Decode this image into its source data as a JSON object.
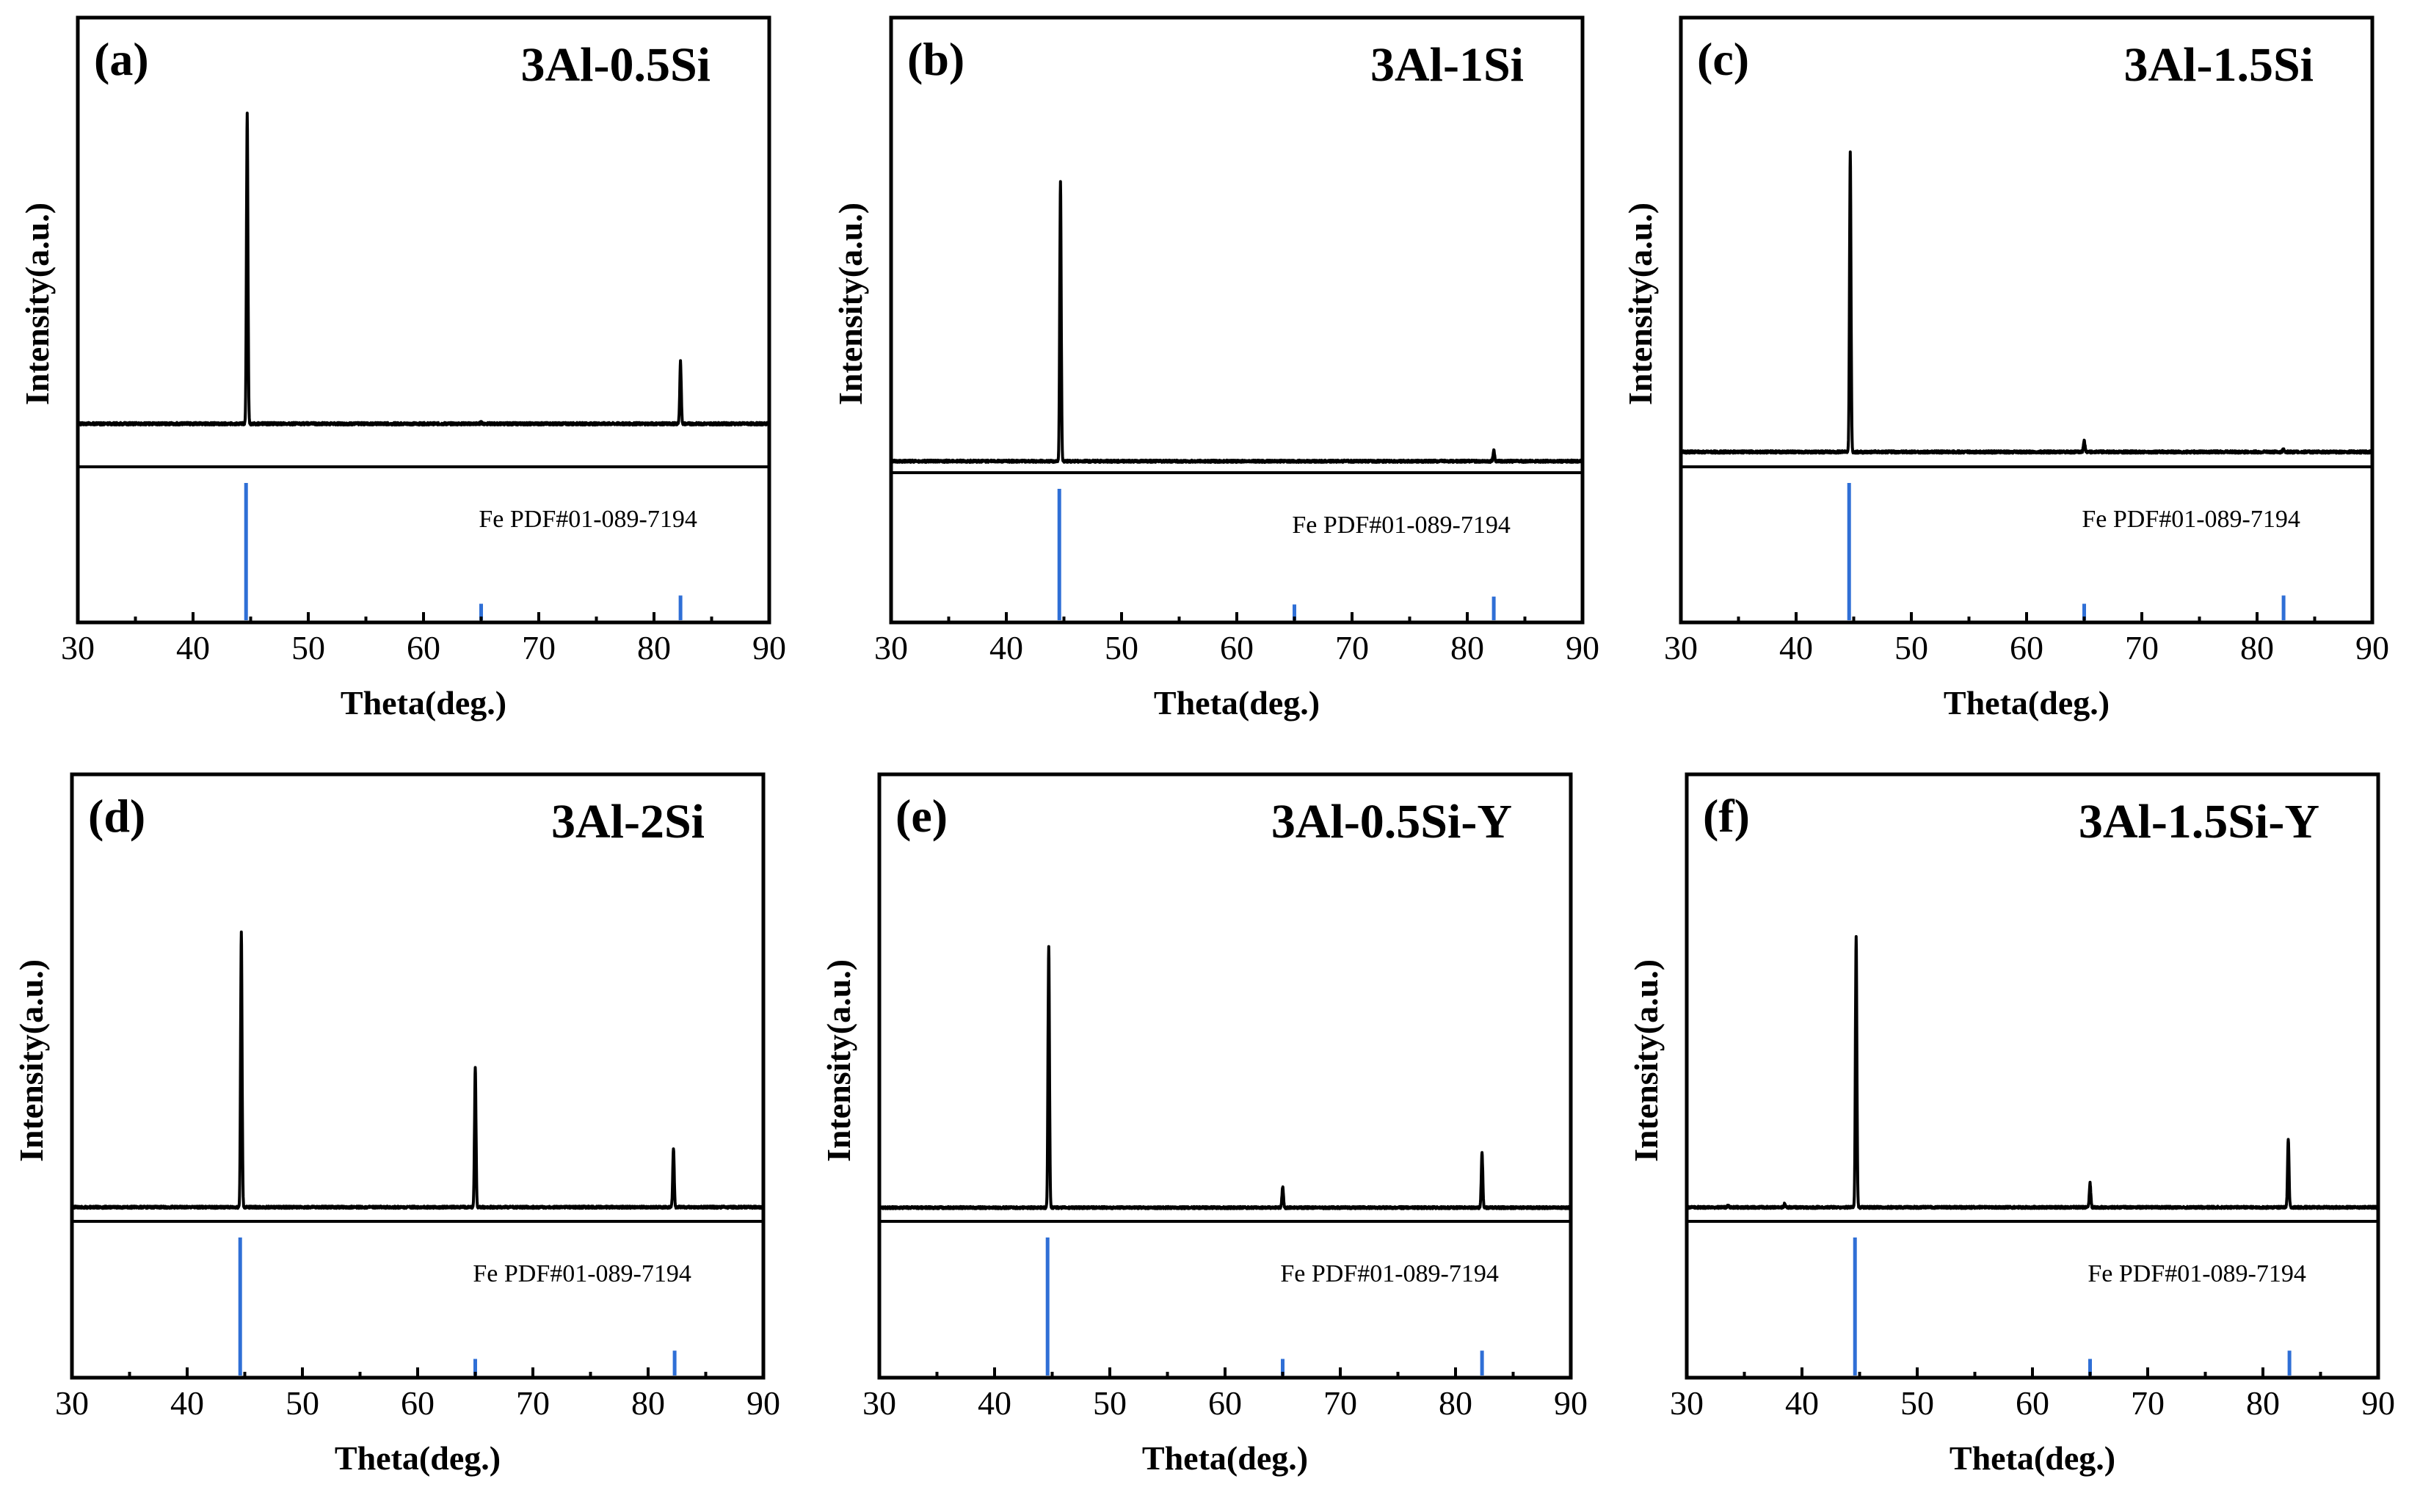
{
  "figure": {
    "accent_color": "#2f6fd6",
    "line_color": "#000000"
  },
  "chart_data": [
    {
      "type": "line",
      "panel": "(a)",
      "title": "3Al-0.5Si",
      "xlabel": "Theta(deg.)",
      "ylabel": "Intensity(a.u.)",
      "xlim": [
        30,
        90
      ],
      "xticks": [
        "30",
        "40",
        "50",
        "60",
        "70",
        "80",
        "90"
      ],
      "pattern": {
        "baseline": 0.0,
        "peaks": [
          {
            "x": 44.7,
            "y": 1.0
          },
          {
            "x": 82.3,
            "y": 0.2
          },
          {
            "x": 65.0,
            "y": 0.005
          }
        ],
        "ylim": [
          -0.12,
          1.05
        ]
      },
      "reference": {
        "label": "Fe PDF#01-089-7194",
        "lines": [
          {
            "x": 44.6,
            "y": 100
          },
          {
            "x": 65.0,
            "y": 12
          },
          {
            "x": 82.3,
            "y": 18
          }
        ]
      }
    },
    {
      "type": "line",
      "panel": "(b)",
      "title": "3Al-1Si",
      "xlabel": "Theta(deg.)",
      "ylabel": "Intensity(a.u.)",
      "xlim": [
        30,
        90
      ],
      "xticks": [
        "30",
        "40",
        "50",
        "60",
        "70",
        "80",
        "90"
      ],
      "pattern": {
        "baseline": 0.0,
        "peaks": [
          {
            "x": 44.7,
            "y": 1.0
          },
          {
            "x": 82.3,
            "y": 0.04
          }
        ],
        "ylim": [
          -0.02,
          1.3
        ]
      },
      "reference": {
        "label": "Fe PDF#01-089-7194",
        "lines": [
          {
            "x": 44.6,
            "y": 100
          },
          {
            "x": 65.0,
            "y": 12
          },
          {
            "x": 82.3,
            "y": 18
          }
        ]
      }
    },
    {
      "type": "line",
      "panel": "(c)",
      "title": "3Al-1.5Si",
      "xlabel": "Theta(deg.)",
      "ylabel": "Intensity(a.u.)",
      "xlim": [
        30,
        90
      ],
      "xticks": [
        "30",
        "40",
        "50",
        "60",
        "70",
        "80",
        "90"
      ],
      "pattern": {
        "baseline": 0.0,
        "peaks": [
          {
            "x": 44.7,
            "y": 1.0
          },
          {
            "x": 65.0,
            "y": 0.04
          },
          {
            "x": 82.3,
            "y": 0.012
          }
        ],
        "ylim": [
          -0.03,
          1.18
        ]
      },
      "reference": {
        "label": "Fe PDF#01-089-7194",
        "lines": [
          {
            "x": 44.6,
            "y": 100
          },
          {
            "x": 65.0,
            "y": 12
          },
          {
            "x": 82.3,
            "y": 18
          }
        ]
      }
    },
    {
      "type": "line",
      "panel": "(d)",
      "title": "3Al-2Si",
      "xlabel": "Theta(deg.)",
      "ylabel": "Intensity(a.u.)",
      "xlim": [
        30,
        90
      ],
      "xticks": [
        "30",
        "40",
        "50",
        "60",
        "70",
        "80",
        "90"
      ],
      "pattern": {
        "baseline": 0.0,
        "peaks": [
          {
            "x": 44.7,
            "y": 1.0
          },
          {
            "x": 65.0,
            "y": 0.51
          },
          {
            "x": 82.2,
            "y": 0.21
          }
        ],
        "ylim": [
          -0.03,
          1.28
        ]
      },
      "reference": {
        "label": "Fe PDF#01-089-7194",
        "lines": [
          {
            "x": 44.6,
            "y": 100
          },
          {
            "x": 65.0,
            "y": 12
          },
          {
            "x": 82.3,
            "y": 18
          }
        ]
      }
    },
    {
      "type": "line",
      "panel": "(e)",
      "title": "3Al-0.5Si-Y",
      "xlabel": "Theta(deg.)",
      "ylabel": "Intensity(a.u.)",
      "xlim": [
        30,
        90
      ],
      "xticks": [
        "30",
        "40",
        "50",
        "60",
        "70",
        "80",
        "90"
      ],
      "pattern": {
        "baseline": 0.0,
        "peaks": [
          {
            "x": 44.7,
            "y": 1.0
          },
          {
            "x": 65.0,
            "y": 0.08
          },
          {
            "x": 82.3,
            "y": 0.21
          }
        ],
        "ylim": [
          -0.03,
          1.35
        ]
      },
      "reference": {
        "label": "Fe PDF#01-089-7194",
        "lines": [
          {
            "x": 44.6,
            "y": 100
          },
          {
            "x": 65.0,
            "y": 12
          },
          {
            "x": 82.3,
            "y": 18
          }
        ]
      }
    },
    {
      "type": "line",
      "panel": "(f)",
      "title": "3Al-1.5Si-Y",
      "xlabel": "Theta(deg.)",
      "ylabel": "Intensity(a.u.)",
      "xlim": [
        30,
        90
      ],
      "xticks": [
        "30",
        "40",
        "50",
        "60",
        "70",
        "80",
        "90"
      ],
      "pattern": {
        "baseline": 0.0,
        "peaks": [
          {
            "x": 44.7,
            "y": 1.0
          },
          {
            "x": 65.0,
            "y": 0.09
          },
          {
            "x": 82.2,
            "y": 0.25
          },
          {
            "x": 38.5,
            "y": 0.012
          },
          {
            "x": 33.6,
            "y": 0.008
          }
        ],
        "ylim": [
          -0.03,
          1.3
        ]
      },
      "reference": {
        "label": "Fe PDF#01-089-7194",
        "lines": [
          {
            "x": 44.6,
            "y": 100
          },
          {
            "x": 65.0,
            "y": 12
          },
          {
            "x": 82.3,
            "y": 18
          }
        ]
      }
    }
  ]
}
